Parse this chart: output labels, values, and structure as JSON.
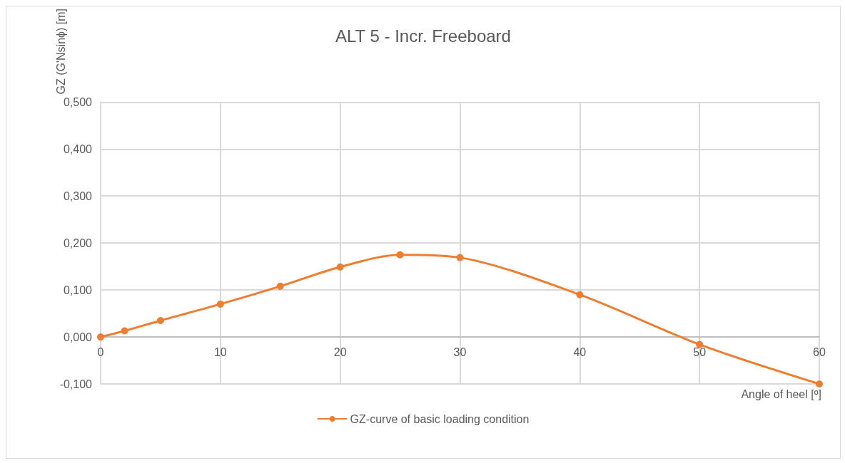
{
  "chart_data": {
    "type": "line",
    "title": "ALT 5 - Incr. Freeboard",
    "xlabel": "Angle of heel [º]",
    "ylabel": "GZ (G'Nsinϕ) [m]",
    "x": [
      0,
      2,
      5,
      10,
      15,
      20,
      25,
      30,
      40,
      50,
      60
    ],
    "series": [
      {
        "name": "GZ-curve of basic loading condition",
        "color": "#ed7d31",
        "values": [
          0,
          0.013,
          0.035,
          0.07,
          0.108,
          0.149,
          0.175,
          0.169,
          0.09,
          -0.016,
          -0.1
        ]
      }
    ],
    "xlim": [
      0,
      60
    ],
    "xticks": [
      0,
      10,
      20,
      30,
      40,
      50,
      60
    ],
    "ylim": [
      -0.1,
      0.5
    ],
    "yticks": [
      {
        "value": -0.1,
        "label": "-0,100"
      },
      {
        "value": 0,
        "label": "0,000"
      },
      {
        "value": 0.1,
        "label": "0,100"
      },
      {
        "value": 0.2,
        "label": "0,200"
      },
      {
        "value": 0.3,
        "label": "0,300"
      },
      {
        "value": 0.4,
        "label": "0,400"
      },
      {
        "value": 0.5,
        "label": "0,500"
      }
    ],
    "grid": true,
    "legend": "bottom",
    "marker": "circle",
    "line_style": "solid"
  }
}
